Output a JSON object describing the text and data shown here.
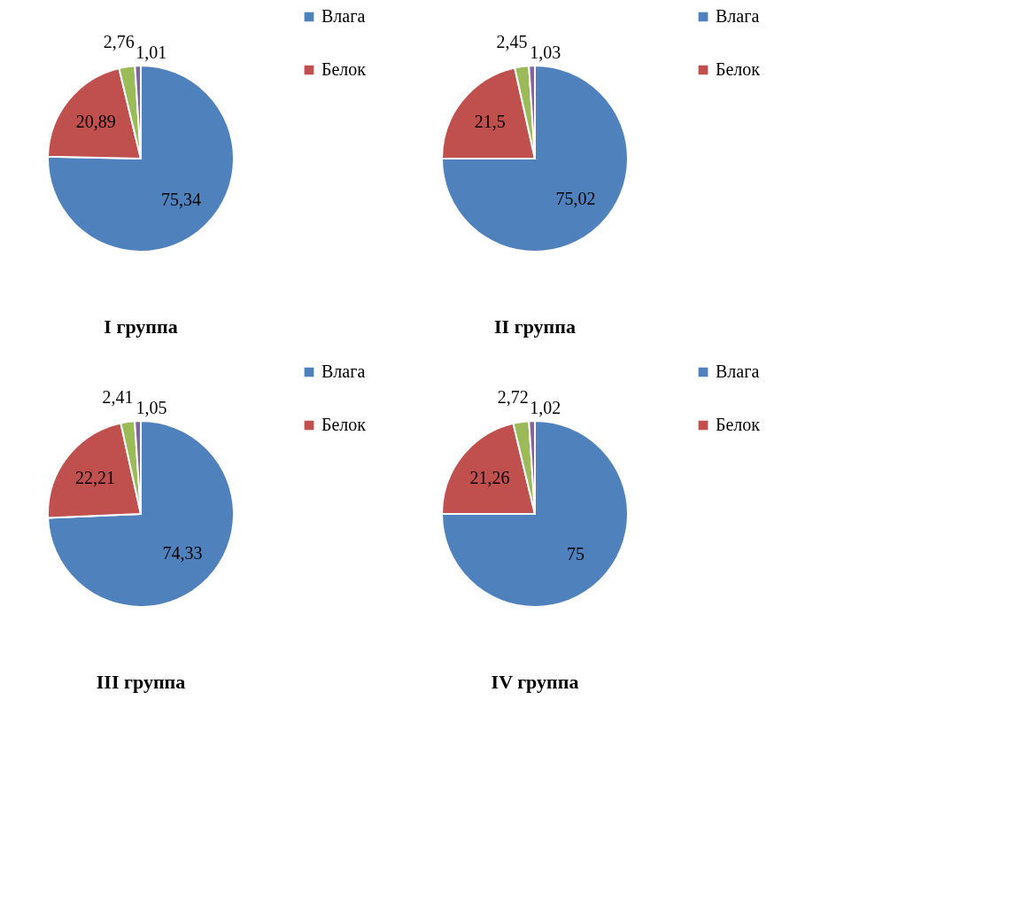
{
  "chart_data": [
    {
      "type": "pie",
      "title": "I группа",
      "categories": [
        "Влага",
        "Белок",
        null,
        null
      ],
      "values": [
        75.34,
        20.89,
        2.76,
        1.01
      ],
      "colors": [
        "#4f81bd",
        "#c0504d",
        "#9bbb59",
        "#8064a2"
      ],
      "value_labels": [
        "75,34",
        "20,89",
        "2,76",
        "1,01"
      ],
      "legend": "right"
    },
    {
      "type": "pie",
      "title": "II группа",
      "categories": [
        "Влага",
        "Белок",
        null,
        null
      ],
      "values": [
        75.02,
        21.5,
        2.45,
        1.03
      ],
      "colors": [
        "#4f81bd",
        "#c0504d",
        "#9bbb59",
        "#8064a2"
      ],
      "value_labels": [
        "75,02",
        "21,5",
        "2,45",
        "1,03"
      ],
      "legend": "right"
    },
    {
      "type": "pie",
      "title": "III группа",
      "categories": [
        "Влага",
        "Белок",
        null,
        null
      ],
      "values": [
        74.33,
        22.21,
        2.41,
        1.05
      ],
      "colors": [
        "#4f81bd",
        "#c0504d",
        "#9bbb59",
        "#8064a2"
      ],
      "value_labels": [
        "74,33",
        "22,21",
        "2,41",
        "1,05"
      ],
      "legend": "right"
    },
    {
      "type": "pie",
      "title": "IV группа",
      "categories": [
        "Влага",
        "Белок",
        null,
        null
      ],
      "values": [
        75,
        21.26,
        2.72,
        1.02
      ],
      "colors": [
        "#4f81bd",
        "#c0504d",
        "#9bbb59",
        "#8064a2"
      ],
      "value_labels": [
        "75",
        "21,26",
        "2,72",
        "1,02"
      ],
      "legend": "right"
    }
  ]
}
